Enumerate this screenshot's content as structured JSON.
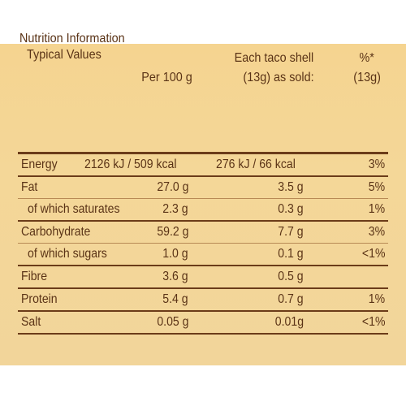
{
  "header": {
    "title_line1": "Nutrition Information",
    "title_line2": "Typical Values",
    "per100": "Per 100 g",
    "each_line1": "Each taco shell",
    "each_line2": "(13g) as sold:",
    "pct_line1": "%*",
    "pct_line2": "(13g)"
  },
  "rows": [
    {
      "label": "Energy",
      "per100": "2126 kJ / 509 kcal",
      "each": "276 kJ / 66 kcal",
      "pct": "3%"
    },
    {
      "label": "Fat",
      "per100": "27.0 g",
      "each": "3.5 g",
      "pct": "5%"
    },
    {
      "label": "of which saturates",
      "per100": "2.3 g",
      "each": "0.3 g",
      "pct": "1%"
    },
    {
      "label": "Carbohydrate",
      "per100": "59.2 g",
      "each": "7.7 g",
      "pct": "3%"
    },
    {
      "label": "of which sugars",
      "per100": "1.0 g",
      "each": "0.1 g",
      "pct": "<1%"
    },
    {
      "label": "Fibre",
      "per100": "3.6 g",
      "each": "0.5 g",
      "pct": ""
    },
    {
      "label": "Protein",
      "per100": "5.4 g",
      "each": "0.7 g",
      "pct": "1%"
    },
    {
      "label": "Salt",
      "per100": "0.05 g",
      "each": "0.01g",
      "pct": "<1%"
    }
  ],
  "colors": {
    "panel": "#f4d798",
    "text": "#5a3316",
    "rule": "#6b3c19"
  }
}
